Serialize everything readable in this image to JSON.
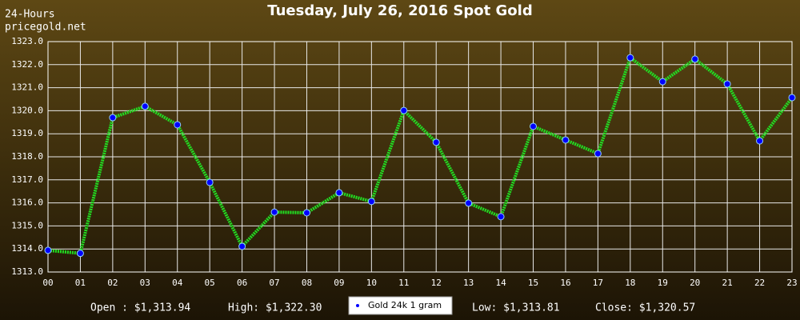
{
  "chart_data": {
    "type": "line",
    "title": "Tuesday, July 26, 2016 Spot Gold",
    "corner_labels": [
      "24-Hours",
      "pricegold.net"
    ],
    "categories": [
      "00",
      "01",
      "02",
      "03",
      "04",
      "05",
      "06",
      "07",
      "08",
      "09",
      "10",
      "11",
      "12",
      "13",
      "14",
      "15",
      "16",
      "17",
      "18",
      "19",
      "20",
      "21",
      "22",
      "23"
    ],
    "series": [
      {
        "name": "Gold 24k 1 gram",
        "color": "#22dd22",
        "marker_color": "#0000ff",
        "values": [
          1313.94,
          1313.81,
          1319.7,
          1320.19,
          1319.39,
          1316.89,
          1314.11,
          1315.6,
          1315.57,
          1316.44,
          1316.06,
          1320.01,
          1318.63,
          1315.99,
          1315.4,
          1319.32,
          1318.73,
          1318.14,
          1322.3,
          1321.26,
          1322.24,
          1321.16,
          1318.69,
          1320.57
        ]
      }
    ],
    "ylim": [
      1313,
      1323
    ],
    "yticks": [
      {
        "value": 1313,
        "label": "1313.0"
      },
      {
        "value": 1314,
        "label": "1314.0"
      },
      {
        "value": 1315,
        "label": "1315.0"
      },
      {
        "value": 1316,
        "label": "1316.0"
      },
      {
        "value": 1317,
        "label": "1317.0"
      },
      {
        "value": 1318,
        "label": "1318.0"
      },
      {
        "value": 1319,
        "label": "1319.0"
      },
      {
        "value": 1320,
        "label": "1320.0"
      },
      {
        "value": 1321,
        "label": "1321.0"
      },
      {
        "value": 1322,
        "label": "1322.0"
      },
      {
        "value": 1323,
        "label": "1323.0"
      }
    ],
    "grid": true,
    "annotations": [
      "Open : $1,313.94",
      "High: $1,322.30",
      "Low: $1,313.81",
      "Close: $1,320.57"
    ]
  }
}
